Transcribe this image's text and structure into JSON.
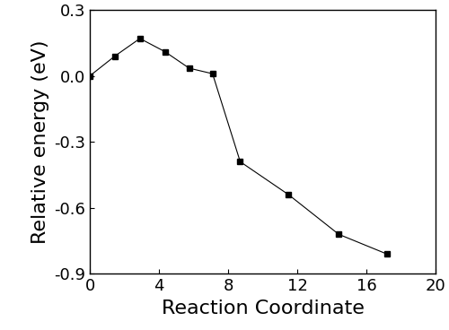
{
  "chart_data": {
    "type": "line",
    "x_label": "Reaction Coordinate",
    "y_label": "Relative energy (eV)",
    "x": [
      0,
      1.45,
      2.9,
      4.35,
      5.75,
      7.1,
      8.7,
      11.5,
      14.4,
      17.2
    ],
    "values": [
      0.0,
      0.09,
      0.17,
      0.11,
      0.035,
      0.01,
      -0.39,
      -0.54,
      -0.72,
      -0.81
    ],
    "color": "#000000",
    "marker": "square",
    "line_style": "solid",
    "xlim": [
      0,
      20
    ],
    "xticks": [
      0,
      4,
      8,
      12,
      16,
      20
    ],
    "ylim": [
      -0.9,
      0.3
    ],
    "yticks": [
      -0.9,
      -0.6,
      -0.3,
      0.0,
      0.3
    ],
    "grid": false
  }
}
